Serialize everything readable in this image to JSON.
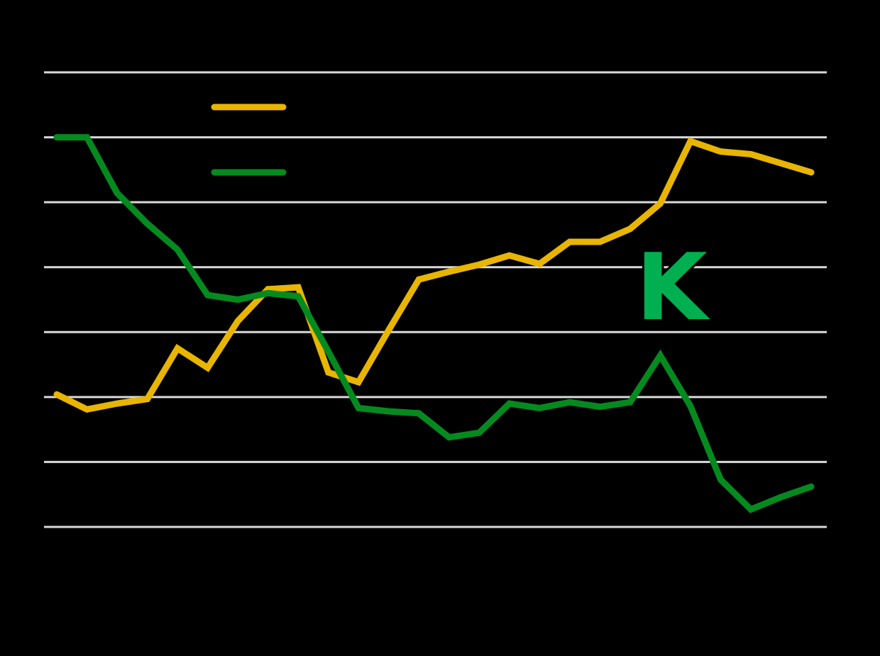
{
  "chart_data": {
    "type": "line",
    "title": "",
    "xlabel": "",
    "ylabel": "",
    "ylim": [
      0,
      7
    ],
    "grid": true,
    "legend_position": "upper-left",
    "x": [
      1,
      2,
      3,
      4,
      5,
      6,
      7,
      8,
      9,
      10,
      11,
      12,
      13,
      14,
      15,
      16,
      17,
      18,
      19,
      20,
      21,
      22,
      23,
      24,
      25,
      26
    ],
    "series": [
      {
        "name": "",
        "color": "#E8B500",
        "values": [
          2.04,
          1.81,
          1.9,
          1.97,
          2.75,
          2.45,
          3.17,
          3.66,
          3.69,
          2.38,
          2.23,
          3.03,
          3.81,
          3.93,
          4.04,
          4.18,
          4.05,
          4.39,
          4.39,
          4.59,
          4.98,
          5.94,
          5.78,
          5.74,
          5.6,
          5.46
        ]
      },
      {
        "name": "",
        "color": "#058A1F",
        "values": [
          6.0,
          6.0,
          5.14,
          4.67,
          4.27,
          3.57,
          3.5,
          3.6,
          3.55,
          2.7,
          1.83,
          1.78,
          1.75,
          1.38,
          1.45,
          1.9,
          1.83,
          1.92,
          1.85,
          1.92,
          2.64,
          1.86,
          0.73,
          0.27,
          0.46,
          0.62
        ]
      }
    ],
    "gridlines": [
      0,
      1,
      2,
      3,
      4,
      5,
      6,
      7
    ]
  },
  "legend": {
    "items": [
      {
        "label": "",
        "color": "#E8B500"
      },
      {
        "label": "",
        "color": "#058A1F"
      }
    ]
  },
  "logo": {
    "text": "K",
    "color": "#00B050"
  },
  "colors": {
    "background": "#000000",
    "grid": "#D9D9D9"
  }
}
